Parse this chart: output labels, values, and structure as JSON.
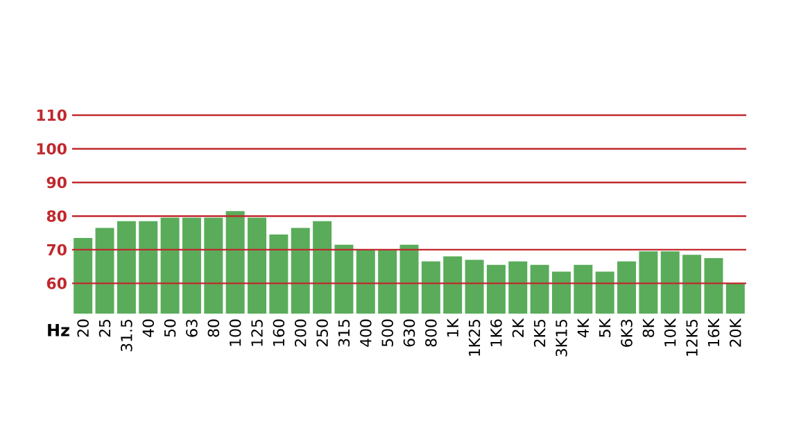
{
  "chart_data": {
    "type": "bar",
    "xlabel": "Hz",
    "categories": [
      "20",
      "25",
      "31.5",
      "40",
      "50",
      "63",
      "80",
      "100",
      "125",
      "160",
      "200",
      "250",
      "315",
      "400",
      "500",
      "630",
      "800",
      "1K",
      "1K25",
      "1K6",
      "2K",
      "2K5",
      "3K15",
      "4K",
      "5K",
      "6K3",
      "8K",
      "10K",
      "12K5",
      "16K",
      "20K"
    ],
    "values": [
      73.5,
      76.5,
      78.5,
      78.5,
      79.5,
      79.5,
      79.5,
      81.5,
      79.5,
      74.5,
      76.5,
      78.5,
      71.5,
      70,
      70,
      71.5,
      66.5,
      68,
      67,
      65.5,
      66.5,
      65.5,
      63.5,
      65.5,
      63.5,
      66.5,
      69.5,
      69.5,
      68.5,
      67.5,
      60
    ],
    "color": "#5aac5a",
    "ylim": [
      51,
      110
    ],
    "yticks": [
      60,
      70,
      80,
      90,
      100,
      110
    ],
    "grid": "y"
  }
}
